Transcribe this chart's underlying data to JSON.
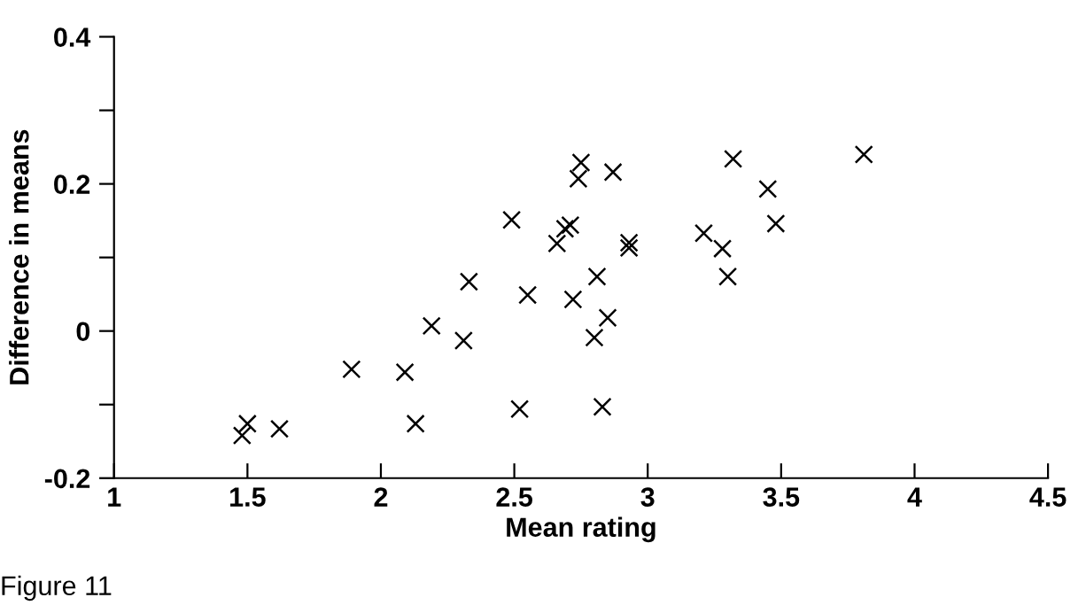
{
  "chart_data": {
    "type": "scatter",
    "xlabel": "Mean rating",
    "ylabel": "Difference in means",
    "annotations": [
      "Figure 11"
    ],
    "x": [
      1.48,
      1.5,
      1.62,
      1.89,
      2.09,
      2.13,
      2.19,
      2.31,
      2.33,
      2.49,
      2.52,
      2.55,
      2.66,
      2.69,
      2.71,
      2.72,
      2.74,
      2.75,
      2.8,
      2.81,
      2.83,
      2.85,
      2.87,
      2.93,
      2.93,
      3.21,
      3.28,
      3.3,
      3.32,
      3.45,
      3.48,
      3.81
    ],
    "values": [
      -0.142,
      -0.126,
      -0.133,
      -0.052,
      -0.056,
      -0.126,
      0.007,
      -0.013,
      0.067,
      0.151,
      -0.106,
      0.049,
      0.119,
      0.139,
      0.144,
      0.043,
      0.207,
      0.229,
      -0.009,
      0.074,
      -0.103,
      0.018,
      0.216,
      0.12,
      0.113,
      0.133,
      0.112,
      0.074,
      0.234,
      0.193,
      0.146,
      0.24
    ],
    "color": "#000000",
    "marker": "cross",
    "xlim": [
      1,
      4.5
    ],
    "ylim": [
      -0.2,
      0.4
    ],
    "xticks": [
      1,
      1.5,
      2,
      2.5,
      3,
      3.5,
      4,
      4.5
    ],
    "yticks": [
      -0.2,
      {
        "value": -0.1,
        "label": null
      },
      {
        "value": 0,
        "label": "0"
      },
      {
        "value": 0.1,
        "label": null
      },
      0.2,
      {
        "value": 0.3,
        "label": null
      },
      0.4
    ],
    "grid": false,
    "legend": false
  }
}
